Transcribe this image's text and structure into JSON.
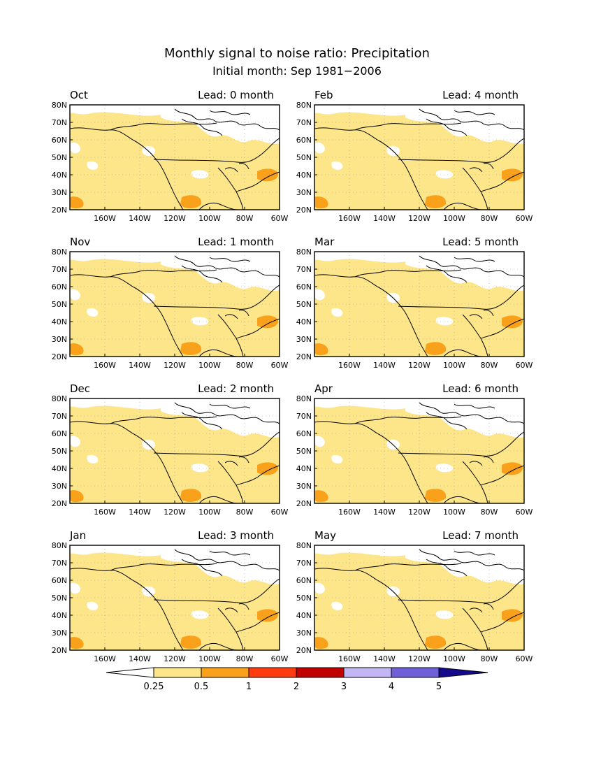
{
  "header": {
    "title": "Monthly signal to noise ratio: Precipitation",
    "subtitle": "Initial month: Sep 1981−2006"
  },
  "axes": {
    "lat_labels": [
      "80N",
      "70N",
      "60N",
      "50N",
      "40N",
      "30N",
      "20N"
    ],
    "lon_labels": [
      "160W",
      "140W",
      "120W",
      "100W",
      "80W",
      "60W"
    ]
  },
  "panels": [
    {
      "month": "Oct",
      "lead": "Lead: 0 month"
    },
    {
      "month": "Feb",
      "lead": "Lead: 4 month"
    },
    {
      "month": "Nov",
      "lead": "Lead: 1 month"
    },
    {
      "month": "Mar",
      "lead": "Lead: 5 month"
    },
    {
      "month": "Dec",
      "lead": "Lead: 2 month"
    },
    {
      "month": "Apr",
      "lead": "Lead: 6 month"
    },
    {
      "month": "Jan",
      "lead": "Lead: 3 month"
    },
    {
      "month": "May",
      "lead": "Lead: 7 month"
    }
  ],
  "colorbar": {
    "labels": [
      "0.25",
      "0.5",
      "1",
      "2",
      "3",
      "4",
      "5"
    ],
    "colors": [
      "#ffffff",
      "#fde68a",
      "#f9a11b",
      "#ff3b0f",
      "#c00000",
      "#c2b6f5",
      "#7060d8",
      "#140a8c"
    ]
  }
}
